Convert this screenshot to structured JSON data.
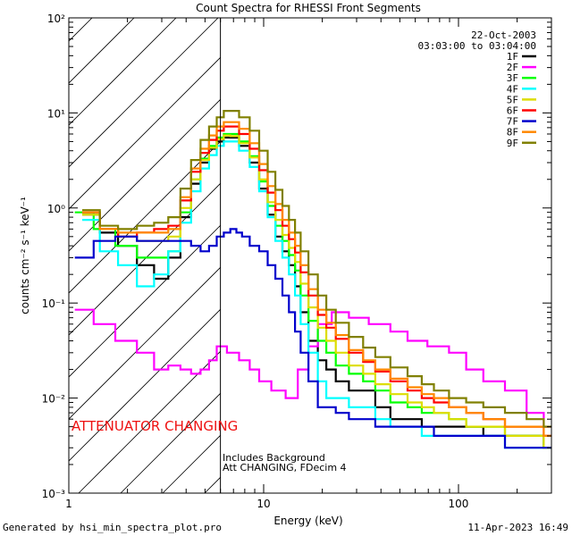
{
  "chart_data": {
    "type": "line",
    "title": "Count Spectra for RHESSI Front Segments",
    "xlabel": "Energy (keV)",
    "ylabel": "counts cm⁻² s⁻¹ keV⁻¹",
    "xscale": "log",
    "yscale": "log",
    "xlim": [
      1,
      300
    ],
    "ylim": [
      0.001,
      100
    ],
    "x_ticks": [
      {
        "value": 1,
        "label": "1"
      },
      {
        "value": 10,
        "label": "10"
      },
      {
        "value": 100,
        "label": "100"
      }
    ],
    "y_ticks": [
      {
        "value": 100,
        "label": "10²"
      },
      {
        "value": 10,
        "label": "10¹"
      },
      {
        "value": 1,
        "label": "10⁰"
      },
      {
        "value": 0.1,
        "label": "10⁻¹"
      },
      {
        "value": 0.01,
        "label": "10⁻²"
      },
      {
        "value": 0.001,
        "label": "10⁻³"
      }
    ],
    "date": "22-Oct-2003",
    "time_range": "03:03:00 to 03:04:00",
    "attenuator_marker_kev": 6,
    "attenuator_label": "ATTENUATOR CHANGING",
    "attenuator_color": "#ee1111",
    "note_lines": [
      "Includes Background",
      "Att CHANGING, FDecim 4"
    ],
    "legend_position": "top-right",
    "series": [
      {
        "name": "1F",
        "color": "#000000",
        "x": [
          1.3,
          1.6,
          2.0,
          2.5,
          3.0,
          3.5,
          4.0,
          4.5,
          5.0,
          5.5,
          6.0,
          6.5,
          7.0,
          8.0,
          9.0,
          10,
          11,
          12,
          13,
          14,
          15,
          16,
          18,
          20,
          22,
          25,
          30,
          35,
          40,
          50,
          60,
          70,
          80,
          100,
          120,
          150,
          200,
          250,
          300
        ],
        "y": [
          0.85,
          0.55,
          0.4,
          0.25,
          0.18,
          0.3,
          0.8,
          1.8,
          3.0,
          4.2,
          5.0,
          5.5,
          5.5,
          4.5,
          3.0,
          1.6,
          0.85,
          0.5,
          0.35,
          0.25,
          0.15,
          0.08,
          0.04,
          0.025,
          0.02,
          0.015,
          0.012,
          0.012,
          0.008,
          0.006,
          0.006,
          0.005,
          0.005,
          0.005,
          0.005,
          0.004,
          0.004,
          0.004,
          0.003
        ]
      },
      {
        "name": "2F",
        "color": "#ff00ff",
        "x": [
          1.2,
          1.5,
          2.0,
          2.5,
          3.0,
          3.5,
          4.0,
          4.5,
          5.0,
          5.5,
          6.0,
          7.0,
          8.0,
          9.0,
          10,
          12,
          14,
          16,
          18,
          20,
          25,
          30,
          40,
          50,
          60,
          80,
          100,
          120,
          150,
          200,
          250,
          300
        ],
        "y": [
          0.085,
          0.06,
          0.04,
          0.03,
          0.02,
          0.022,
          0.02,
          0.018,
          0.02,
          0.025,
          0.035,
          0.03,
          0.025,
          0.02,
          0.015,
          0.012,
          0.01,
          0.02,
          0.035,
          0.06,
          0.08,
          0.07,
          0.06,
          0.05,
          0.04,
          0.035,
          0.03,
          0.02,
          0.015,
          0.012,
          0.007,
          0.005
        ]
      },
      {
        "name": "3F",
        "color": "#00ff00",
        "x": [
          1.2,
          1.5,
          2.0,
          2.5,
          3.0,
          3.5,
          4.0,
          4.5,
          5.0,
          5.5,
          6.0,
          6.5,
          7.0,
          8.0,
          9.0,
          10,
          11,
          12,
          13,
          14,
          15,
          16,
          18,
          20,
          22,
          25,
          30,
          35,
          40,
          50,
          60,
          70,
          80,
          100,
          120,
          150,
          200,
          250,
          300
        ],
        "y": [
          0.9,
          0.6,
          0.4,
          0.3,
          0.3,
          0.35,
          0.9,
          2.0,
          3.3,
          4.5,
          5.5,
          6.0,
          6.0,
          5.0,
          3.5,
          1.9,
          1.05,
          0.65,
          0.45,
          0.32,
          0.22,
          0.12,
          0.065,
          0.04,
          0.03,
          0.022,
          0.018,
          0.015,
          0.012,
          0.009,
          0.008,
          0.007,
          0.007,
          0.006,
          0.005,
          0.005,
          0.004,
          0.004,
          0.003
        ]
      },
      {
        "name": "4F",
        "color": "#00ffff",
        "x": [
          1.3,
          1.6,
          2.0,
          2.5,
          3.0,
          3.5,
          4.0,
          4.5,
          5.0,
          5.5,
          6.0,
          6.5,
          7.0,
          8.0,
          9.0,
          10,
          11,
          12,
          13,
          14,
          15,
          16,
          18,
          20,
          22,
          25,
          30,
          35,
          40,
          50,
          60,
          70,
          80,
          100,
          120,
          150,
          200,
          250,
          300
        ],
        "y": [
          0.75,
          0.35,
          0.25,
          0.15,
          0.2,
          0.35,
          0.7,
          1.5,
          2.6,
          3.6,
          4.5,
          5.0,
          5.0,
          4.0,
          2.7,
          1.5,
          0.8,
          0.45,
          0.3,
          0.2,
          0.12,
          0.06,
          0.03,
          0.015,
          0.01,
          0.01,
          0.008,
          0.008,
          0.006,
          0.005,
          0.005,
          0.004,
          0.004,
          0.004,
          0.004,
          0.004,
          0.003,
          0.003,
          0.003
        ]
      },
      {
        "name": "5F",
        "color": "#dddd00",
        "x": [
          1.3,
          1.6,
          2.0,
          2.5,
          3.0,
          3.5,
          4.0,
          4.5,
          5.0,
          5.5,
          6.0,
          6.5,
          7.0,
          8.0,
          9.0,
          10,
          11,
          12,
          13,
          14,
          15,
          16,
          18,
          20,
          22,
          25,
          30,
          35,
          40,
          50,
          60,
          70,
          80,
          100,
          120,
          150,
          200,
          250,
          300
        ],
        "y": [
          0.85,
          0.6,
          0.5,
          0.45,
          0.45,
          0.5,
          1.0,
          2.0,
          3.2,
          4.3,
          5.3,
          5.8,
          5.7,
          4.8,
          3.4,
          2.0,
          1.15,
          0.75,
          0.52,
          0.38,
          0.27,
          0.16,
          0.09,
          0.055,
          0.04,
          0.03,
          0.022,
          0.018,
          0.014,
          0.011,
          0.009,
          0.008,
          0.007,
          0.006,
          0.005,
          0.005,
          0.004,
          0.004,
          0.003
        ]
      },
      {
        "name": "6F",
        "color": "#ff0000",
        "x": [
          1.3,
          1.6,
          2.0,
          2.5,
          3.0,
          3.5,
          4.0,
          4.5,
          5.0,
          5.5,
          6.0,
          6.5,
          7.0,
          8.0,
          9.0,
          10,
          11,
          12,
          13,
          14,
          15,
          16,
          18,
          20,
          22,
          25,
          30,
          35,
          40,
          50,
          60,
          70,
          80,
          100,
          120,
          150,
          200,
          250,
          300
        ],
        "y": [
          0.9,
          0.6,
          0.5,
          0.55,
          0.6,
          0.65,
          1.2,
          2.4,
          3.8,
          5.2,
          6.5,
          7.2,
          7.2,
          6.0,
          4.2,
          2.5,
          1.45,
          0.95,
          0.65,
          0.47,
          0.34,
          0.21,
          0.12,
          0.075,
          0.055,
          0.042,
          0.03,
          0.024,
          0.019,
          0.015,
          0.012,
          0.01,
          0.009,
          0.008,
          0.007,
          0.006,
          0.005,
          0.005,
          0.004
        ]
      },
      {
        "name": "7F",
        "color": "#0000cc",
        "x": [
          1.2,
          1.5,
          2.0,
          2.5,
          3.0,
          3.5,
          4.0,
          4.5,
          5.0,
          5.5,
          6.0,
          6.5,
          7.0,
          7.5,
          8.0,
          9.0,
          10,
          11,
          12,
          13,
          14,
          15,
          16,
          18,
          20,
          22,
          25,
          30,
          35,
          40,
          50,
          60,
          70,
          80,
          100,
          120,
          150,
          200,
          250,
          300
        ],
        "y": [
          0.3,
          0.45,
          0.5,
          0.45,
          0.45,
          0.45,
          0.45,
          0.4,
          0.35,
          0.4,
          0.5,
          0.55,
          0.6,
          0.55,
          0.5,
          0.4,
          0.35,
          0.25,
          0.18,
          0.12,
          0.08,
          0.05,
          0.03,
          0.015,
          0.008,
          0.008,
          0.007,
          0.006,
          0.006,
          0.005,
          0.005,
          0.005,
          0.005,
          0.004,
          0.004,
          0.004,
          0.004,
          0.003,
          0.003,
          0.003
        ]
      },
      {
        "name": "8F",
        "color": "#ff8800",
        "x": [
          1.3,
          1.6,
          2.0,
          2.5,
          3.0,
          3.5,
          4.0,
          4.5,
          5.0,
          5.5,
          6.0,
          6.5,
          7.0,
          8.0,
          9.0,
          10,
          11,
          12,
          13,
          14,
          15,
          16,
          18,
          20,
          22,
          25,
          30,
          35,
          40,
          50,
          60,
          70,
          80,
          100,
          120,
          150,
          200,
          250,
          300
        ],
        "y": [
          0.9,
          0.6,
          0.55,
          0.55,
          0.55,
          0.6,
          1.3,
          2.6,
          4.2,
          5.8,
          7.2,
          8.0,
          8.0,
          6.8,
          4.8,
          2.9,
          1.7,
          1.1,
          0.75,
          0.55,
          0.4,
          0.25,
          0.14,
          0.085,
          0.062,
          0.046,
          0.032,
          0.025,
          0.02,
          0.016,
          0.013,
          0.011,
          0.01,
          0.008,
          0.007,
          0.006,
          0.005,
          0.005,
          0.004
        ]
      },
      {
        "name": "9F",
        "color": "#808000",
        "x": [
          1.3,
          1.6,
          2.0,
          2.5,
          3.0,
          3.5,
          4.0,
          4.5,
          5.0,
          5.5,
          6.0,
          6.5,
          7.0,
          8.0,
          9.0,
          10,
          11,
          12,
          13,
          14,
          15,
          16,
          18,
          20,
          22,
          25,
          30,
          35,
          40,
          50,
          60,
          70,
          80,
          100,
          120,
          150,
          200,
          250,
          300
        ],
        "y": [
          0.95,
          0.65,
          0.6,
          0.65,
          0.7,
          0.8,
          1.6,
          3.2,
          5.2,
          7.2,
          9.0,
          10.5,
          10.5,
          9.0,
          6.5,
          4.0,
          2.4,
          1.55,
          1.05,
          0.75,
          0.55,
          0.35,
          0.2,
          0.12,
          0.085,
          0.062,
          0.044,
          0.034,
          0.027,
          0.021,
          0.017,
          0.014,
          0.012,
          0.01,
          0.009,
          0.008,
          0.007,
          0.006,
          0.005
        ]
      }
    ]
  },
  "footer": {
    "left": "Generated by hsi_min_spectra_plot.pro",
    "right": "11-Apr-2023 16:49"
  }
}
